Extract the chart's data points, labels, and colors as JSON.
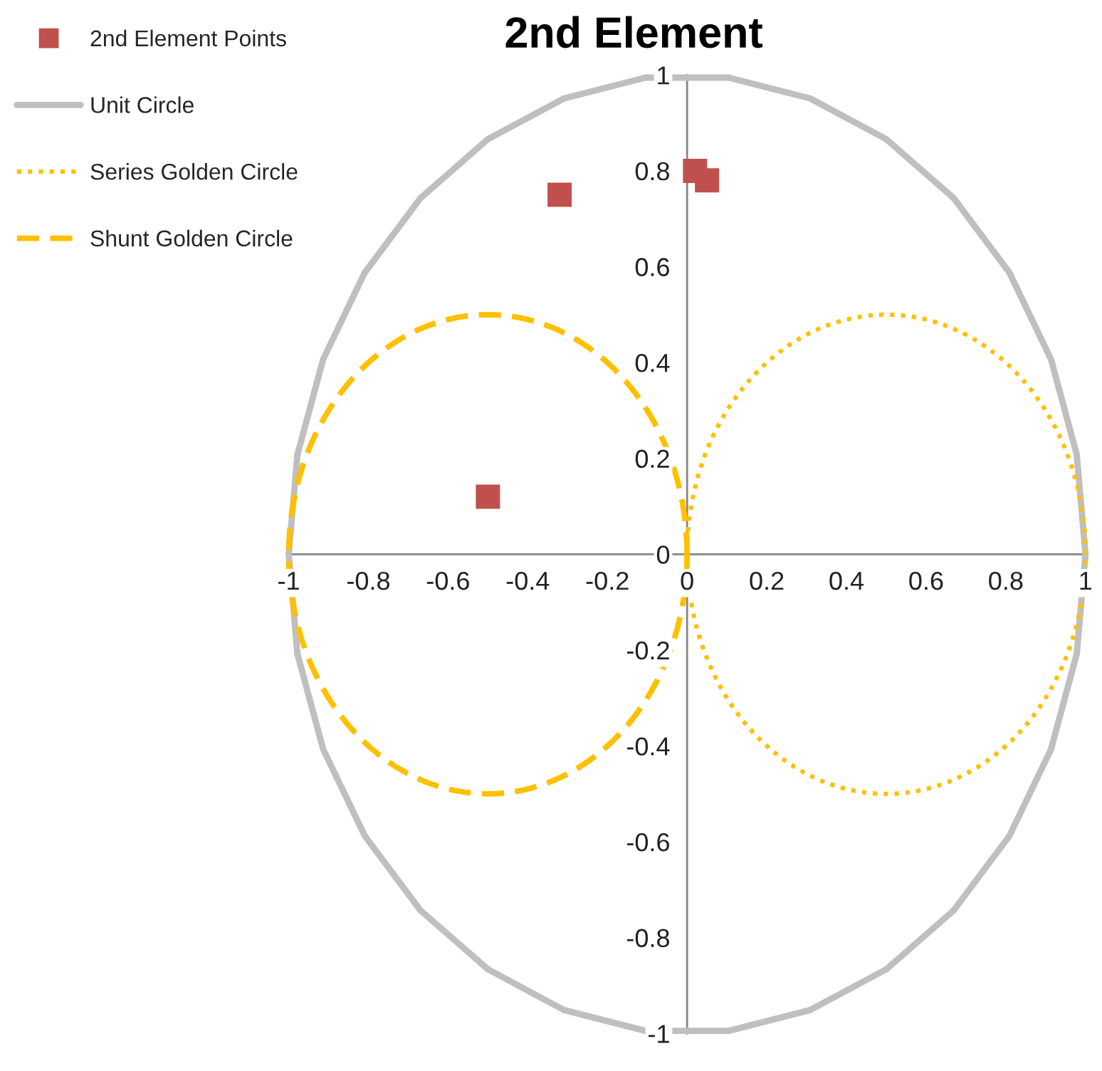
{
  "chart_data": {
    "type": "scatter",
    "title": "2nd Element",
    "xlim": [
      -1,
      1
    ],
    "ylim": [
      -1,
      1
    ],
    "xticks": [
      -1,
      -0.8,
      -0.6,
      -0.4,
      -0.2,
      0,
      0.2,
      0.4,
      0.6,
      0.8,
      1
    ],
    "yticks": [
      -1,
      -0.8,
      -0.6,
      -0.4,
      -0.2,
      0,
      0.2,
      0.4,
      0.6,
      0.8,
      1
    ],
    "legend": "top left",
    "series": [
      {
        "name": "2nd Element Points",
        "color": "#c0504d",
        "marker": "square",
        "x": [
          0.02,
          0.05,
          -0.32,
          -0.5
        ],
        "values": [
          0.8,
          0.78,
          0.75,
          0.12
        ]
      }
    ],
    "annotations": [
      "Unit Circle",
      "Series Golden Circle",
      "Shunt Golden Circle"
    ]
  }
}
